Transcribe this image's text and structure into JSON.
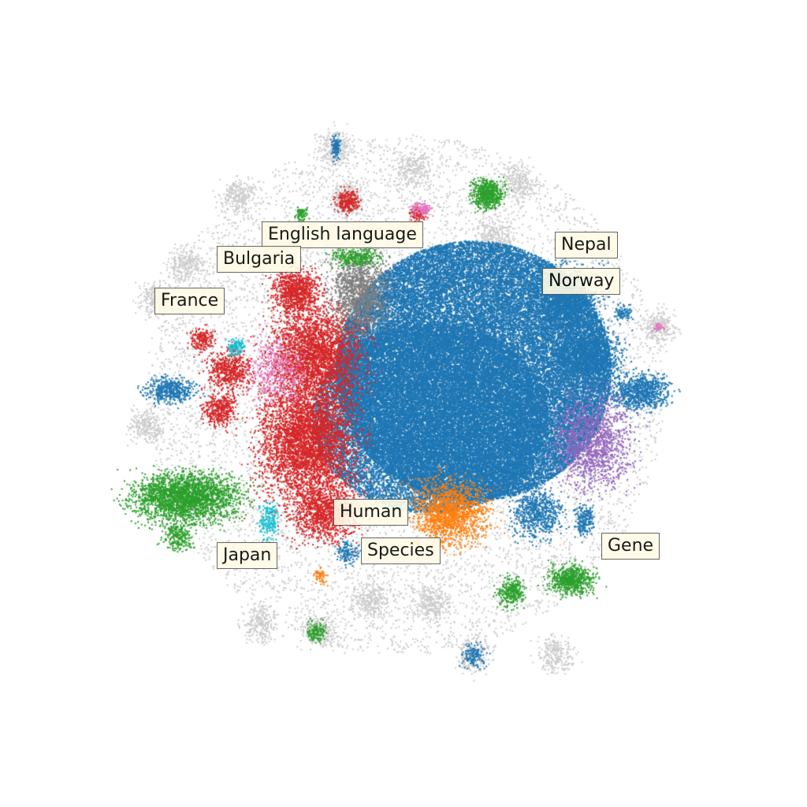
{
  "chart_data": {
    "type": "scatter",
    "title": "",
    "xlabel": "",
    "ylabel": "",
    "axes_visible": false,
    "grid": false,
    "colors": {
      "background_points": "#cccccc",
      "blue": "#1f77b4",
      "red": "#d62728",
      "green": "#2ca02c",
      "orange": "#ff7f0e",
      "purple": "#9467bd",
      "gray": "#7f7f7f",
      "pink": "#e377c2",
      "cyan": "#17becf",
      "label_box": "#fffbe6"
    },
    "annotations": [
      {
        "key": "english",
        "text": "English language"
      },
      {
        "key": "bulgaria",
        "text": "Bulgaria"
      },
      {
        "key": "france",
        "text": "France"
      },
      {
        "key": "nepal",
        "text": "Nepal"
      },
      {
        "key": "norway",
        "text": "Norway"
      },
      {
        "key": "human",
        "text": "Human"
      },
      {
        "key": "species",
        "text": "Species"
      },
      {
        "key": "japan",
        "text": "Japan"
      },
      {
        "key": "gene",
        "text": "Gene"
      }
    ]
  }
}
